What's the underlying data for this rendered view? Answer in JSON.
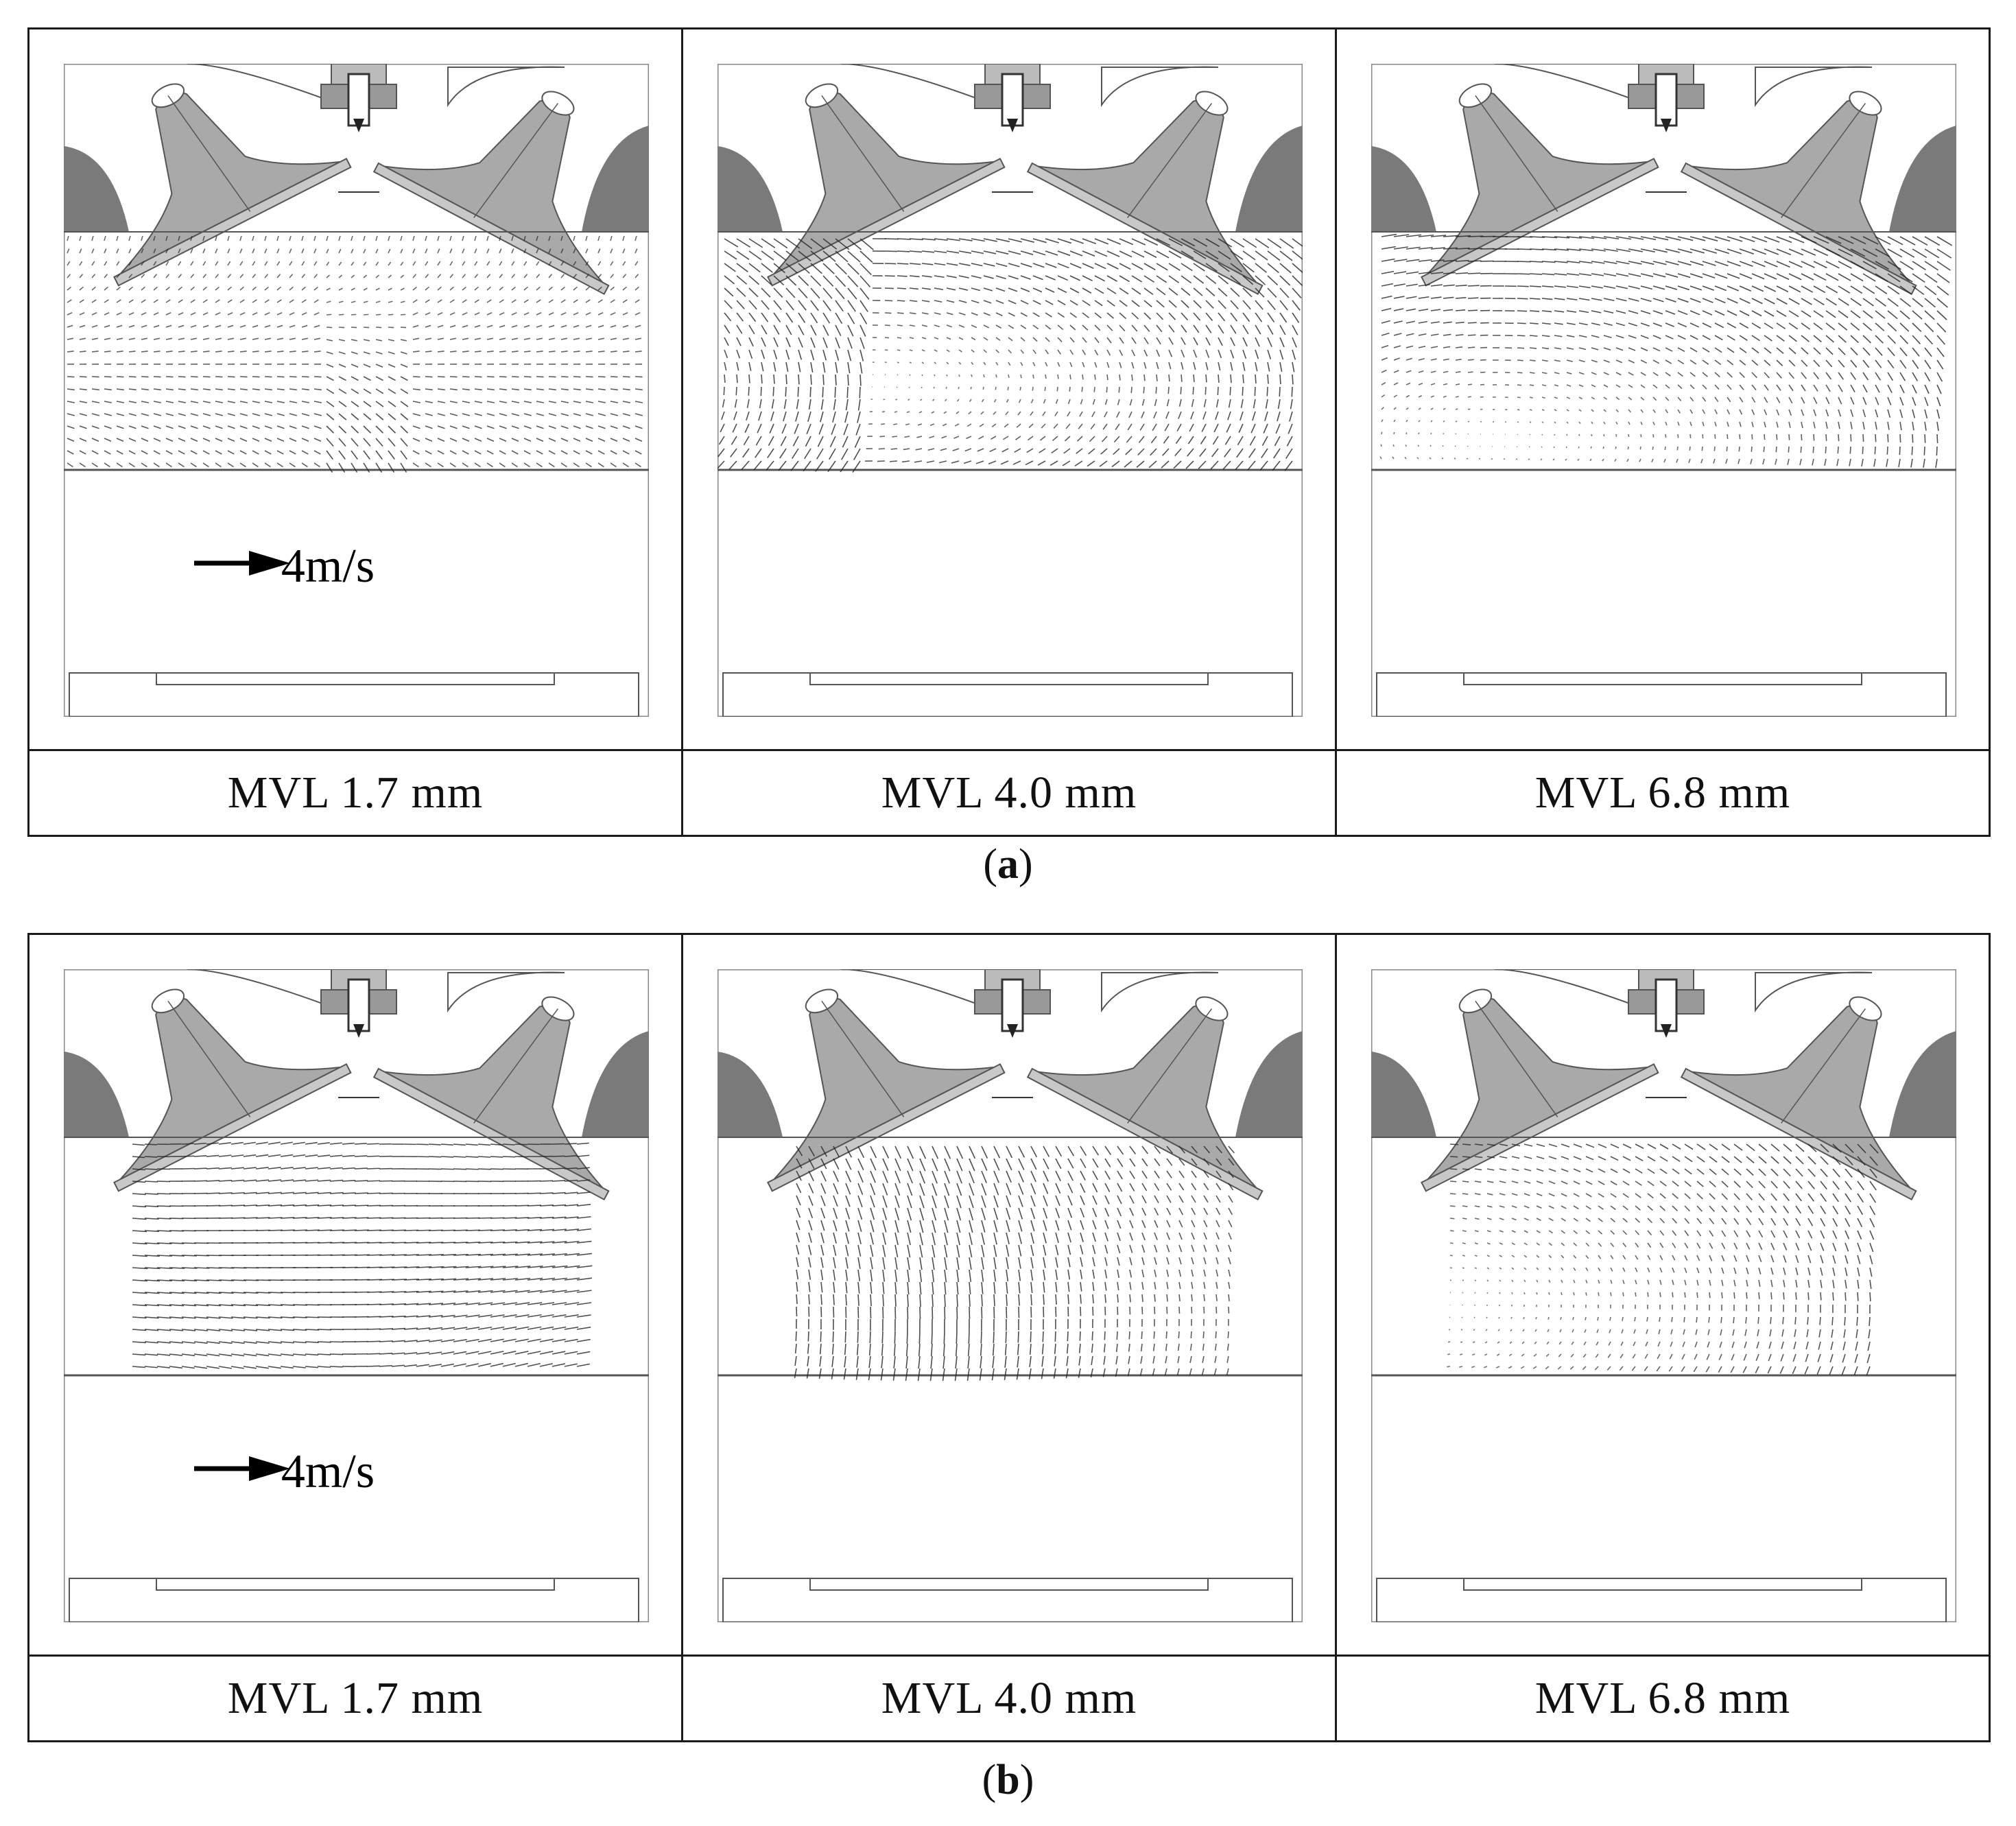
{
  "panels": {
    "a": {
      "label_open": "(",
      "label_letter": "a",
      "label_close": ")",
      "captions": [
        "MVL 1.7 mm",
        "MVL 4.0 mm",
        "MVL 6.8 mm"
      ],
      "scale_arrow_label": "4m/s",
      "small_scale_label": "4 m/s"
    },
    "b": {
      "label_open": "(",
      "label_letter": "b",
      "label_close": ")",
      "captions": [
        "MVL 1.7 mm",
        "MVL 4.0 mm",
        "MVL 6.8 mm"
      ],
      "scale_arrow_label": "4m/s",
      "small_scale_label": "4 m/s"
    }
  },
  "colors": {
    "valve_fill": "#a9a9a9",
    "wall_fill": "#7a7a7a",
    "line": "#555555",
    "vector": "#222222"
  }
}
